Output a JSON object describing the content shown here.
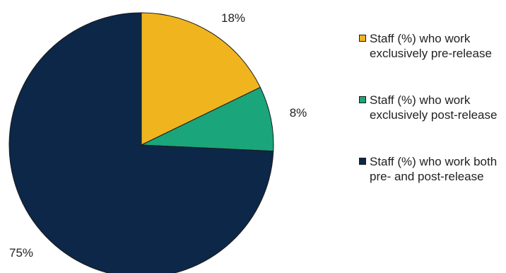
{
  "chart_data": {
    "type": "pie",
    "title": "",
    "legend_position": "right",
    "start_angle_deg": 0,
    "direction": "clockwise",
    "slices": [
      {
        "label": "Staff (%) who work exclusively pre-release",
        "value": 18,
        "display": "18%",
        "color": "#f0b51e"
      },
      {
        "label": "Staff (%) who work exclusively post-release",
        "value": 8,
        "display": "8%",
        "color": "#1aa57a"
      },
      {
        "label": "Staff (%) who work both pre- and post-release",
        "value": 75,
        "display": "75%",
        "color": "#0c2748"
      }
    ]
  }
}
